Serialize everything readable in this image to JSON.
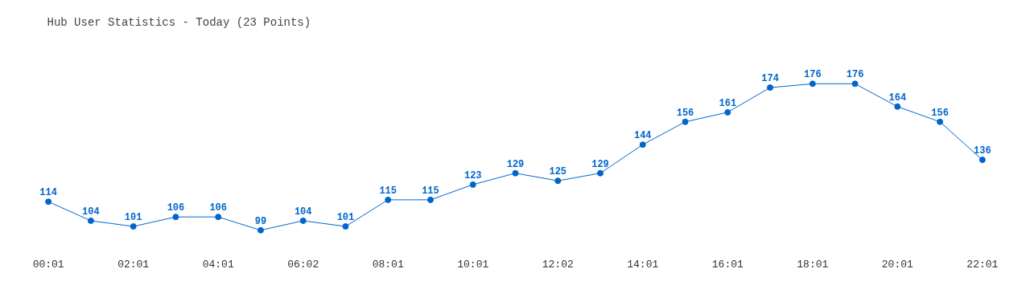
{
  "chart_data": {
    "type": "line",
    "title": "Hub User Statistics - Today (23 Points)",
    "categories": [
      "00:01",
      null,
      "02:01",
      null,
      "04:01",
      null,
      "06:02",
      null,
      "08:01",
      null,
      "10:01",
      null,
      "12:02",
      null,
      "14:01",
      null,
      "16:01",
      null,
      "18:01",
      null,
      "20:01",
      null,
      "22:01"
    ],
    "series": [
      {
        "color": "#0066cc",
        "values": [
          114,
          104,
          101,
          106,
          106,
          99,
          104,
          101,
          115,
          115,
          123,
          129,
          125,
          129,
          144,
          156,
          161,
          174,
          176,
          176,
          164,
          156,
          136
        ]
      }
    ],
    "data_labels": true,
    "marker": "circle",
    "grid": false
  }
}
